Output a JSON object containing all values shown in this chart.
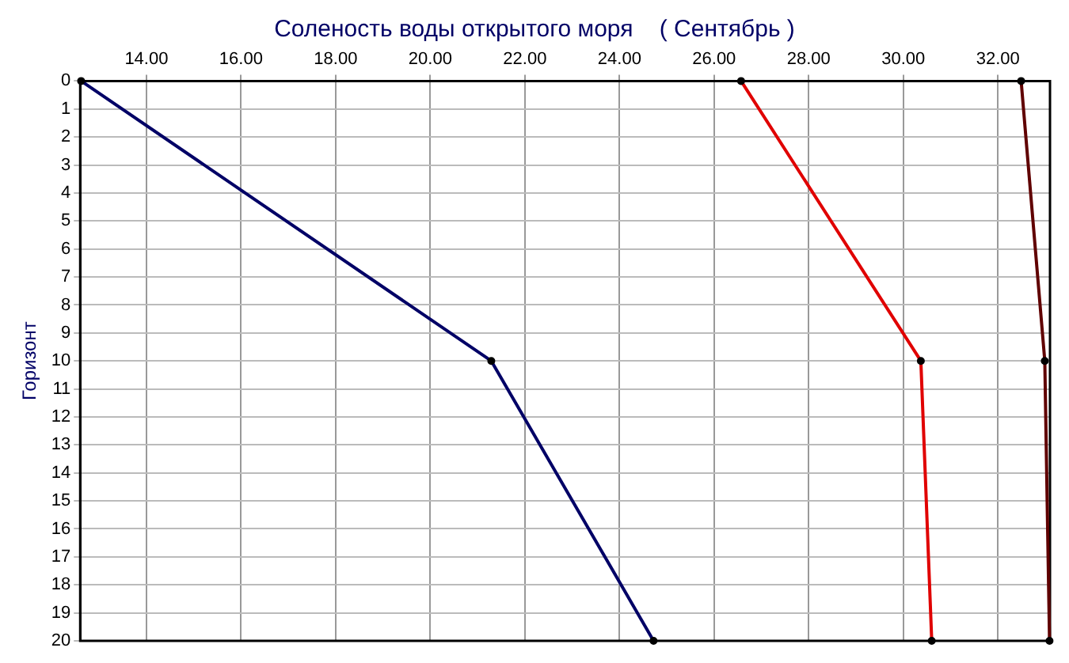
{
  "chart_data": {
    "type": "line",
    "title": "Соленость воды открытого моря    ( Сентябрь )",
    "ylabel": "Горизонт",
    "series": [
      {
        "color": "#000066",
        "x": [
          12.62,
          21.29,
          24.72
        ],
        "values": [
          0,
          10,
          20
        ]
      },
      {
        "color": "#e00000",
        "x": [
          26.57,
          30.37,
          30.6
        ],
        "values": [
          0,
          10,
          20
        ]
      },
      {
        "color": "#600000",
        "x": [
          32.49,
          32.99,
          33.09
        ],
        "values": [
          0,
          10,
          20
        ]
      }
    ],
    "xlim": [
      12.6,
      33.1
    ],
    "xticks": [
      {
        "value": 14,
        "label": "14.00"
      },
      {
        "value": 16,
        "label": "16.00"
      },
      {
        "value": 18,
        "label": "18.00"
      },
      {
        "value": 20,
        "label": "20.00"
      },
      {
        "value": 22,
        "label": "22.00"
      },
      {
        "value": 24,
        "label": "24.00"
      },
      {
        "value": 26,
        "label": "26.00"
      },
      {
        "value": 28,
        "label": "28.00"
      },
      {
        "value": 30,
        "label": "30.00"
      },
      {
        "value": 32,
        "label": "32.00"
      }
    ],
    "ylim": [
      20,
      0
    ],
    "yticks": [
      0,
      1,
      2,
      3,
      4,
      5,
      6,
      7,
      8,
      9,
      10,
      11,
      12,
      13,
      14,
      15,
      16,
      17,
      18,
      19,
      20
    ],
    "grid": true,
    "legend": false,
    "marker": "circle",
    "line_style": "solid"
  }
}
